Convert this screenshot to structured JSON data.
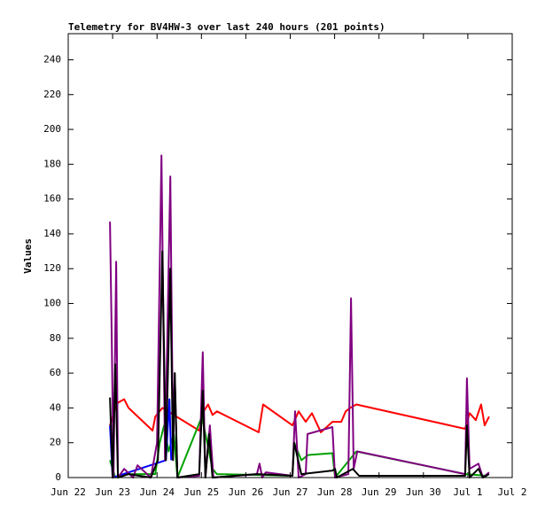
{
  "chart_data": {
    "type": "line",
    "title": "Telemetry for BV4HW-3 over last 240 hours (201 points)",
    "ylabel": "Values",
    "xlim": [
      0,
      10
    ],
    "ylim": [
      0,
      255
    ],
    "xticks": [
      {
        "value": 0,
        "label": "Jun 22"
      },
      {
        "value": 1,
        "label": "Jun 23"
      },
      {
        "value": 2,
        "label": "Jun 24"
      },
      {
        "value": 3,
        "label": "Jun 25"
      },
      {
        "value": 4,
        "label": "Jun 26"
      },
      {
        "value": 5,
        "label": "Jun 27"
      },
      {
        "value": 6,
        "label": "Jun 28"
      },
      {
        "value": 7,
        "label": "Jun 29"
      },
      {
        "value": 8,
        "label": "Jun 30"
      },
      {
        "value": 9,
        "label": "Jul 1"
      },
      {
        "value": 10,
        "label": "Jul 2"
      }
    ],
    "yticks": [
      0,
      20,
      40,
      60,
      80,
      100,
      120,
      140,
      160,
      180,
      200,
      220,
      240
    ],
    "series": [
      {
        "color": "#ff0000",
        "x": [
          0.94,
          1.06,
          1.12,
          1.26,
          1.36,
          1.9,
          1.96,
          2.12,
          2.95,
          3.05,
          3.15,
          3.25,
          3.35,
          4.29,
          4.39,
          5.05,
          5.19,
          5.35,
          5.49,
          5.69,
          5.95,
          6.15,
          6.25,
          6.35,
          6.49,
          8.94,
          9.04,
          9.18,
          9.3,
          9.38,
          9.48
        ],
        "values": [
          30,
          40,
          43,
          45,
          40,
          27,
          35,
          40,
          27,
          38,
          42,
          36,
          38,
          26,
          42,
          30,
          38,
          32,
          37,
          26,
          32,
          32,
          38,
          40,
          42,
          28,
          37,
          33,
          42,
          30,
          35
        ]
      },
      {
        "color": "#00a000",
        "x": [
          0.94,
          1.06,
          1.26,
          1.96,
          2.06,
          2.16,
          2.26,
          2.38,
          2.46,
          3.01,
          3.25,
          3.35,
          5.05,
          5.09,
          5.25,
          5.41,
          5.95,
          6.01,
          6.49,
          8.94,
          9.44
        ],
        "values": [
          10,
          0,
          2,
          2,
          20,
          30,
          15,
          25,
          0,
          35,
          5,
          2,
          1,
          20,
          10,
          13,
          14,
          0,
          15,
          2,
          1
        ]
      },
      {
        "color": "#0000ff",
        "x": [
          0.94,
          1.0,
          2.2,
          2.28,
          2.32
        ],
        "values": [
          30,
          0,
          10,
          45,
          10
        ]
      },
      {
        "color": "#800080",
        "x": [
          0.94,
          0.98,
          1.02,
          1.08,
          1.12,
          1.26,
          1.46,
          1.56,
          1.86,
          2.0,
          2.1,
          2.18,
          2.3,
          2.36,
          2.4,
          2.46,
          2.95,
          3.03,
          3.09,
          3.19,
          3.27,
          4.25,
          4.31,
          4.37,
          4.45,
          5.05,
          5.11,
          5.19,
          5.35,
          5.39,
          5.95,
          6.01,
          6.31,
          6.37,
          6.43,
          6.51,
          8.94,
          8.98,
          9.04,
          9.24,
          9.34,
          9.48
        ],
        "values": [
          147,
          80,
          0,
          124,
          0,
          5,
          0,
          7,
          0,
          20,
          185,
          10,
          173,
          20,
          60,
          0,
          1,
          72,
          0,
          30,
          0,
          2,
          8,
          0,
          3,
          1,
          38,
          0,
          2,
          25,
          29,
          0,
          2,
          103,
          5,
          15,
          2,
          57,
          5,
          8,
          0,
          3
        ]
      },
      {
        "color": "#000000",
        "x": [
          0.94,
          1.0,
          1.06,
          1.12,
          1.36,
          1.86,
          2.02,
          2.12,
          2.2,
          2.3,
          2.36,
          2.4,
          2.46,
          2.95,
          3.03,
          3.09,
          3.17,
          3.25,
          4.25,
          5.05,
          5.09,
          5.25,
          5.95,
          6.01,
          6.05,
          6.41,
          6.55,
          8.94,
          8.98,
          9.04,
          9.24,
          9.34,
          9.48
        ],
        "values": [
          46,
          0,
          65,
          0,
          2,
          0,
          10,
          130,
          10,
          120,
          10,
          60,
          0,
          2,
          50,
          0,
          25,
          0,
          2,
          1,
          20,
          2,
          4,
          5,
          0,
          5,
          1,
          1,
          30,
          0,
          5,
          0,
          2
        ]
      }
    ]
  }
}
